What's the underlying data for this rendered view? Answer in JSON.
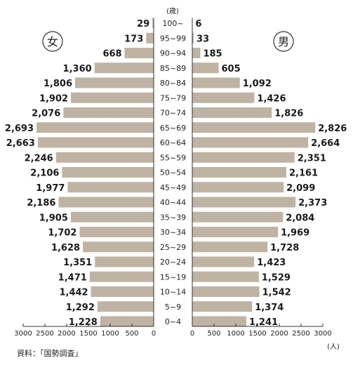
{
  "chart_data": {
    "type": "bar",
    "subtype": "population-pyramid",
    "title": "",
    "age_header": "(歳)",
    "unit_label": "(人)",
    "source": "資料：「国勢調査」",
    "bar_color": "#bfb3a3",
    "categories": [
      "100~",
      "95~99",
      "90~94",
      "85~89",
      "80~84",
      "75~79",
      "70~74",
      "65~69",
      "60~64",
      "55~59",
      "50~54",
      "45~49",
      "40~44",
      "35~39",
      "30~34",
      "25~29",
      "20~24",
      "15~19",
      "10~14",
      "5~9",
      "0~4"
    ],
    "series": [
      {
        "name": "女",
        "side": "left",
        "values": [
          29,
          173,
          668,
          1360,
          1806,
          1902,
          2076,
          2693,
          2663,
          2246,
          2106,
          1977,
          2186,
          1905,
          1702,
          1628,
          1351,
          1471,
          1442,
          1292,
          1228
        ],
        "labels": [
          "29",
          "173",
          "668",
          "1,360",
          "1,806",
          "1,902",
          "2,076",
          "2,693",
          "2,663",
          "2,246",
          "2,106",
          "1,977",
          "2,186",
          "1,905",
          "1,702",
          "1,628",
          "1,351",
          "1,471",
          "1,442",
          "1,292",
          "1,228"
        ]
      },
      {
        "name": "男",
        "side": "right",
        "values": [
          6,
          33,
          185,
          605,
          1092,
          1426,
          1826,
          2826,
          2664,
          2351,
          2161,
          2099,
          2373,
          2084,
          1969,
          1728,
          1423,
          1529,
          1542,
          1374,
          1241
        ],
        "labels": [
          "6",
          "33",
          "185",
          "605",
          "1,092",
          "1,426",
          "1,826",
          "2,826",
          "2,664",
          "2,351",
          "2,161",
          "2,099",
          "2,373",
          "2,084",
          "1,969",
          "1,728",
          "1,423",
          "1,529",
          "1,542",
          "1,374",
          "1,241"
        ]
      }
    ],
    "left_axis": {
      "ticks": [
        3000,
        2500,
        2000,
        1500,
        1000,
        500,
        0
      ]
    },
    "right_axis": {
      "ticks": [
        0,
        500,
        1000,
        1500,
        2000,
        2500,
        3000
      ]
    },
    "xlim": [
      0,
      3000
    ],
    "grid": false,
    "legend": "none"
  }
}
